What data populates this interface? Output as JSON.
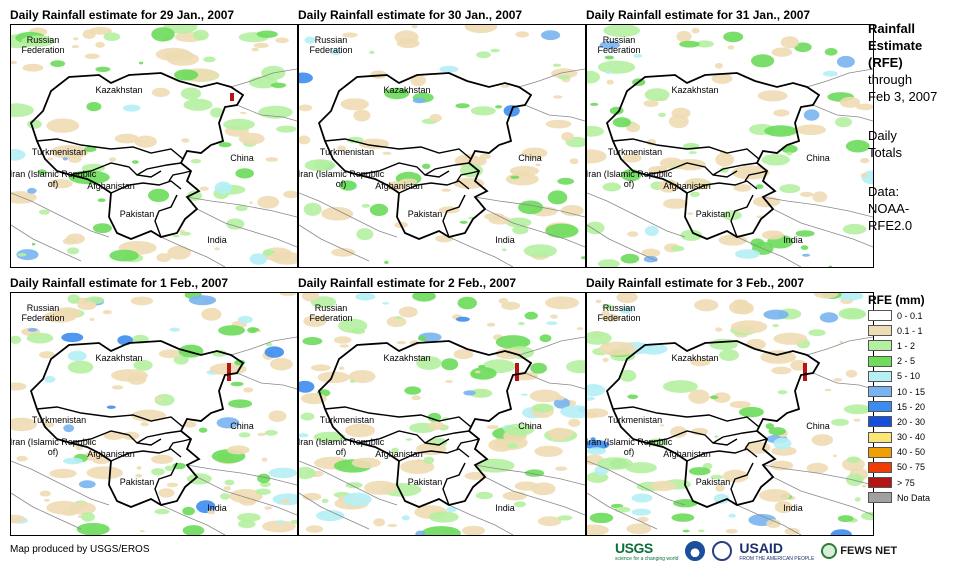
{
  "panels": [
    {
      "title": "Daily Rainfall estimate for 29 Jan., 2007",
      "seed": 3,
      "intensity": 0.6
    },
    {
      "title": "Daily Rainfall estimate for 30 Jan., 2007",
      "seed": 11,
      "intensity": 0.4
    },
    {
      "title": "Daily Rainfall estimate for 31 Jan., 2007",
      "seed": 23,
      "intensity": 0.6
    },
    {
      "title": "Daily Rainfall estimate for 1 Feb., 2007",
      "seed": 37,
      "intensity": 0.9
    },
    {
      "title": "Daily Rainfall estimate for 2 Feb., 2007",
      "seed": 51,
      "intensity": 1.0
    },
    {
      "title": "Daily Rainfall estimate for 3 Feb., 2007",
      "seed": 67,
      "intensity": 0.9
    }
  ],
  "map_labels": {
    "russia": "Russian Federation",
    "kazakhstan": "Kazakhstan",
    "turkmenistan": "Turkmenistan",
    "iran": "Iran (Islamic Republic of)",
    "afghanistan": "Afghanistan",
    "pakistan": "Pakistan",
    "china": "China",
    "india": "India"
  },
  "side": {
    "title_line1": "Rainfall",
    "title_line2": "Estimate",
    "title_line3": "(RFE)",
    "through": "through",
    "date": "Feb 3, 2007",
    "totals_line1": "Daily",
    "totals_line2": "Totals",
    "data_line1": "Data:",
    "data_line2": "NOAA-",
    "data_line3": "RFE2.0"
  },
  "legend": {
    "title": "RFE (mm)",
    "items": [
      {
        "label": "0 - 0.1",
        "color": "#ffffff"
      },
      {
        "label": "0.1 - 1",
        "color": "#f0dcb4"
      },
      {
        "label": "1 - 2",
        "color": "#b4f0a0"
      },
      {
        "label": "2 - 5",
        "color": "#6cdc5a"
      },
      {
        "label": "5 - 10",
        "color": "#b4f0f5"
      },
      {
        "label": "10 - 15",
        "color": "#78b4f0"
      },
      {
        "label": "15 - 20",
        "color": "#3c8cf0"
      },
      {
        "label": "20 - 30",
        "color": "#1450dc"
      },
      {
        "label": "30 - 40",
        "color": "#fae678"
      },
      {
        "label": "40 - 50",
        "color": "#f0a000"
      },
      {
        "label": "50 - 75",
        "color": "#f03c00"
      },
      {
        "label": "> 75",
        "color": "#b41414"
      },
      {
        "label": "No Data",
        "color": "#a0a0a0"
      }
    ]
  },
  "credit": "Map produced by USGS/EROS",
  "logos": {
    "usgs": "USGS",
    "usgs_tag": "science for a changing world",
    "usaid": "USAID",
    "usaid_tag": "FROM THE AMERICAN PEOPLE",
    "fews": "FEWS NET"
  }
}
